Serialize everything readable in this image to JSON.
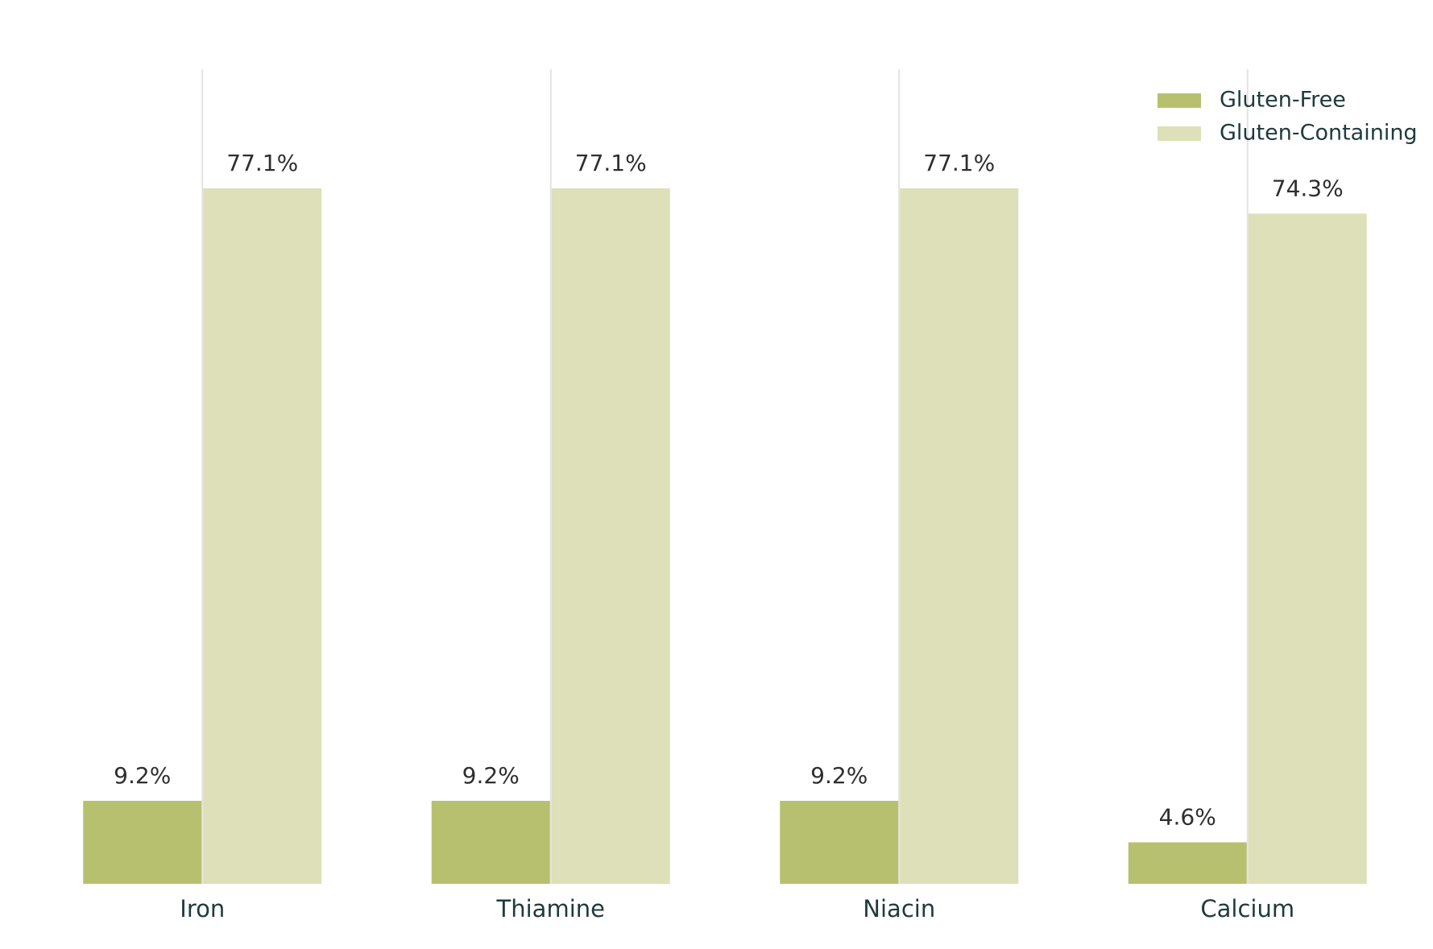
{
  "chart_data": {
    "type": "bar",
    "categories": [
      "Iron",
      "Thiamine",
      "Niacin",
      "Calcium"
    ],
    "series": [
      {
        "name": "Gluten-Free",
        "color": "#b7c06e",
        "values": [
          9.2,
          9.2,
          9.2,
          4.6
        ],
        "value_labels": [
          "9.2%",
          "9.2%",
          "9.2%",
          "4.6%"
        ]
      },
      {
        "name": "Gluten-Containing",
        "color": "#dde0b8",
        "values": [
          77.1,
          77.1,
          77.1,
          74.3
        ],
        "value_labels": [
          "77.1%",
          "77.1%",
          "77.1%",
          "74.3%"
        ]
      }
    ],
    "grid": true,
    "legend": "top-right"
  }
}
